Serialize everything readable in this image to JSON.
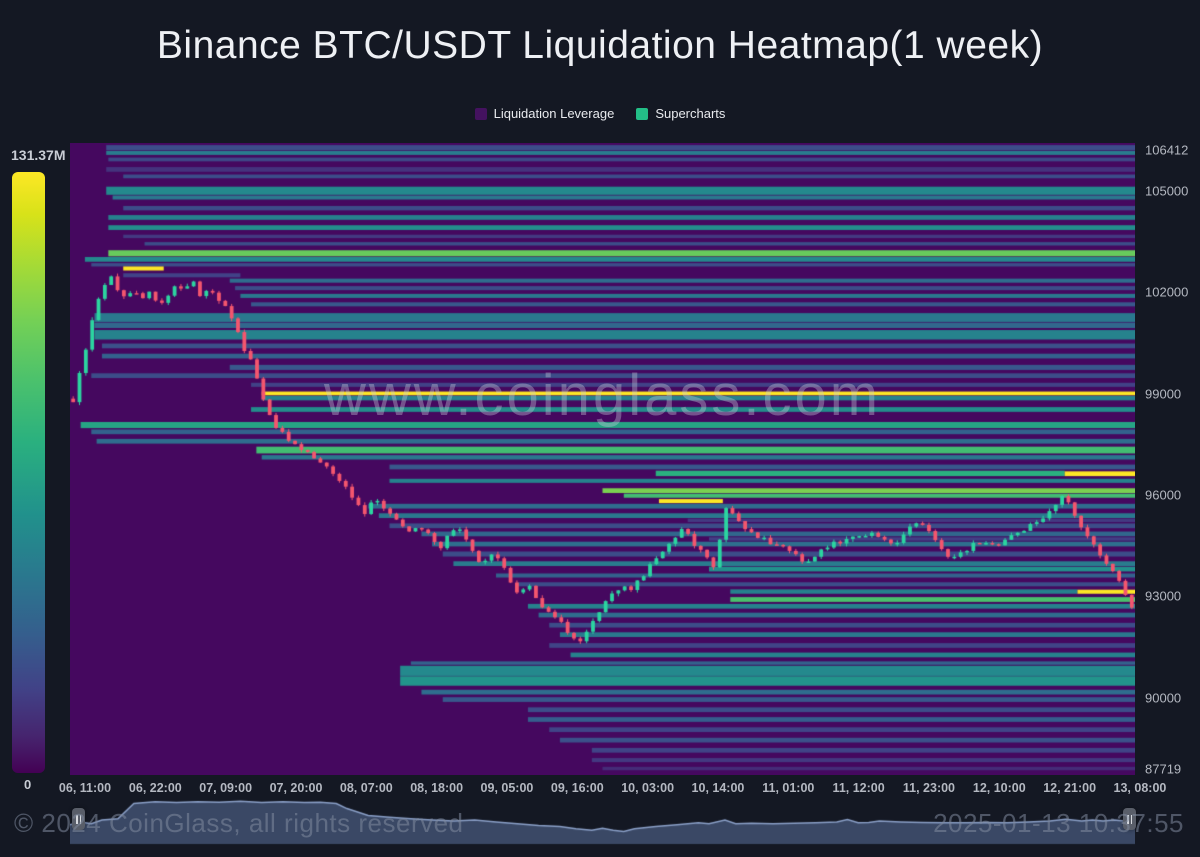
{
  "title": "Binance BTC/USDT Liquidation Heatmap(1 week)",
  "legend": {
    "items": [
      {
        "label": "Liquidation Leverage",
        "color": "#44125f"
      },
      {
        "label": "Supercharts",
        "color": "#23bf87"
      }
    ]
  },
  "watermark": "www.coinglass.com",
  "footer": {
    "copyright": "© 2024 CoinGlass, all rights reserved",
    "timestamp": "2025-01-13 10:37:55"
  },
  "colors": {
    "page_bg": "#141823",
    "heatmap_bg": "#45085f",
    "candle_up": "#2cd5a0",
    "candle_down": "#f4566e",
    "nav_fill": "#3c4a68",
    "nav_line": "#8ba0c8",
    "accent_yellow": "#fde725"
  },
  "chart_data": {
    "type": "heatmap",
    "title": "Binance BTC/USDT Liquidation Heatmap(1 week)",
    "colorbar_max": "131.37M",
    "colorbar_min": "0",
    "price_axis": {
      "min": 87719,
      "max": 106412,
      "ticks": [
        106412,
        105000,
        102000,
        99000,
        96000,
        93000,
        90000,
        87719
      ]
    },
    "time_ticks": [
      "06, 11:00",
      "06, 22:00",
      "07, 09:00",
      "07, 20:00",
      "08, 07:00",
      "08, 18:00",
      "09, 05:00",
      "09, 16:00",
      "10, 03:00",
      "10, 14:00",
      "11, 01:00",
      "11, 12:00",
      "11, 23:00",
      "12, 10:00",
      "12, 21:00",
      "13, 08:00"
    ],
    "bands": [
      {
        "p0": 106350,
        "p1": 106200,
        "x0": 0.034,
        "x1": 1,
        "v": 0.3
      },
      {
        "p0": 106180,
        "p1": 106060,
        "x0": 0.034,
        "x1": 1,
        "v": 0.52
      },
      {
        "p0": 105980,
        "p1": 105870,
        "x0": 0.036,
        "x1": 1,
        "v": 0.28
      },
      {
        "p0": 105700,
        "p1": 105560,
        "x0": 0.034,
        "x1": 1,
        "v": 0.2
      },
      {
        "p0": 105480,
        "p1": 105370,
        "x0": 0.05,
        "x1": 1,
        "v": 0.3
      },
      {
        "p0": 105120,
        "p1": 104880,
        "x0": 0.034,
        "x1": 1,
        "v": 0.58
      },
      {
        "p0": 104860,
        "p1": 104740,
        "x0": 0.04,
        "x1": 1,
        "v": 0.5
      },
      {
        "p0": 104550,
        "p1": 104420,
        "x0": 0.05,
        "x1": 1,
        "v": 0.3
      },
      {
        "p0": 104280,
        "p1": 104140,
        "x0": 0.036,
        "x1": 1,
        "v": 0.55
      },
      {
        "p0": 103980,
        "p1": 103840,
        "x0": 0.036,
        "x1": 1,
        "v": 0.6
      },
      {
        "p0": 103700,
        "p1": 103600,
        "x0": 0.05,
        "x1": 1,
        "v": 0.22
      },
      {
        "p0": 103480,
        "p1": 103380,
        "x0": 0.07,
        "x1": 1,
        "v": 0.3
      },
      {
        "p0": 103240,
        "p1": 103060,
        "x0": 0.036,
        "x1": 1,
        "v": 0.85
      },
      {
        "p0": 103040,
        "p1": 102900,
        "x0": 0.014,
        "x1": 1,
        "v": 0.58
      },
      {
        "p0": 102860,
        "p1": 102760,
        "x0": 0.02,
        "x1": 1,
        "v": 0.3
      },
      {
        "p0": 102760,
        "p1": 102640,
        "x0": 0.05,
        "x1": 0.088,
        "v": 1.0
      },
      {
        "p0": 102560,
        "p1": 102440,
        "x0": 0.05,
        "x1": 0.16,
        "v": 0.25
      },
      {
        "p0": 102400,
        "p1": 102280,
        "x0": 0.15,
        "x1": 1,
        "v": 0.45
      },
      {
        "p0": 102180,
        "p1": 102060,
        "x0": 0.155,
        "x1": 1,
        "v": 0.3
      },
      {
        "p0": 101950,
        "p1": 101830,
        "x0": 0.16,
        "x1": 1,
        "v": 0.5
      },
      {
        "p0": 101700,
        "p1": 101580,
        "x0": 0.17,
        "x1": 1,
        "v": 0.35
      },
      {
        "p0": 101380,
        "p1": 101120,
        "x0": 0.023,
        "x1": 1,
        "v": 0.5
      },
      {
        "p0": 101100,
        "p1": 100940,
        "x0": 0.023,
        "x1": 1,
        "v": 0.42
      },
      {
        "p0": 100880,
        "p1": 100600,
        "x0": 0.023,
        "x1": 1,
        "v": 0.55
      },
      {
        "p0": 100480,
        "p1": 100340,
        "x0": 0.03,
        "x1": 1,
        "v": 0.32
      },
      {
        "p0": 100180,
        "p1": 100040,
        "x0": 0.03,
        "x1": 1,
        "v": 0.4
      },
      {
        "p0": 99850,
        "p1": 99700,
        "x0": 0.15,
        "x1": 1,
        "v": 0.35
      },
      {
        "p0": 99600,
        "p1": 99460,
        "x0": 0.02,
        "x1": 1,
        "v": 0.3
      },
      {
        "p0": 99320,
        "p1": 99200,
        "x0": 0.17,
        "x1": 1,
        "v": 0.25
      },
      {
        "p0": 99060,
        "p1": 98950,
        "x0": 0.18,
        "x1": 1,
        "v": 1.0
      },
      {
        "p0": 98930,
        "p1": 98800,
        "x0": 0.18,
        "x1": 1,
        "v": 0.55
      },
      {
        "p0": 98600,
        "p1": 98460,
        "x0": 0.17,
        "x1": 1,
        "v": 0.6
      },
      {
        "p0": 98160,
        "p1": 97980,
        "x0": 0.01,
        "x1": 1,
        "v": 0.68
      },
      {
        "p0": 97940,
        "p1": 97800,
        "x0": 0.02,
        "x1": 1,
        "v": 0.4
      },
      {
        "p0": 97660,
        "p1": 97520,
        "x0": 0.025,
        "x1": 1,
        "v": 0.45
      },
      {
        "p0": 97430,
        "p1": 97230,
        "x0": 0.175,
        "x1": 1,
        "v": 0.78
      },
      {
        "p0": 97180,
        "p1": 97050,
        "x0": 0.18,
        "x1": 1,
        "v": 0.5
      },
      {
        "p0": 96900,
        "p1": 96760,
        "x0": 0.3,
        "x1": 1,
        "v": 0.35
      },
      {
        "p0": 96720,
        "p1": 96560,
        "x0": 0.55,
        "x1": 0.934,
        "v": 0.72
      },
      {
        "p0": 96700,
        "p1": 96560,
        "x0": 0.934,
        "x1": 1,
        "v": 1.0
      },
      {
        "p0": 96480,
        "p1": 96360,
        "x0": 0.3,
        "x1": 1,
        "v": 0.55
      },
      {
        "p0": 96200,
        "p1": 96060,
        "x0": 0.5,
        "x1": 1,
        "v": 0.88
      },
      {
        "p0": 96040,
        "p1": 95920,
        "x0": 0.52,
        "x1": 1,
        "v": 0.78
      },
      {
        "p0": 95880,
        "p1": 95760,
        "x0": 0.553,
        "x1": 0.613,
        "v": 1.0
      },
      {
        "p0": 95740,
        "p1": 95600,
        "x0": 0.28,
        "x1": 1,
        "v": 0.45
      },
      {
        "p0": 95460,
        "p1": 95320,
        "x0": 0.29,
        "x1": 1,
        "v": 0.5
      },
      {
        "p0": 95300,
        "p1": 95200,
        "x0": 0.58,
        "x1": 1,
        "v": 0.22
      },
      {
        "p0": 95160,
        "p1": 95020,
        "x0": 0.3,
        "x1": 1,
        "v": 0.3
      },
      {
        "p0": 94920,
        "p1": 94780,
        "x0": 0.33,
        "x1": 1,
        "v": 0.42
      },
      {
        "p0": 94750,
        "p1": 94650,
        "x0": 0.6,
        "x1": 1,
        "v": 0.24
      },
      {
        "p0": 94620,
        "p1": 94480,
        "x0": 0.34,
        "x1": 1,
        "v": 0.46
      },
      {
        "p0": 94330,
        "p1": 94180,
        "x0": 0.35,
        "x1": 1,
        "v": 0.3
      },
      {
        "p0": 94040,
        "p1": 93900,
        "x0": 0.36,
        "x1": 1,
        "v": 0.52
      },
      {
        "p0": 93880,
        "p1": 93740,
        "x0": 0.6,
        "x1": 1,
        "v": 0.62
      },
      {
        "p0": 93680,
        "p1": 93560,
        "x0": 0.4,
        "x1": 1,
        "v": 0.4
      },
      {
        "p0": 93420,
        "p1": 93300,
        "x0": 0.42,
        "x1": 1,
        "v": 0.3
      },
      {
        "p0": 93210,
        "p1": 93080,
        "x0": 0.62,
        "x1": 0.946,
        "v": 0.55
      },
      {
        "p0": 93200,
        "p1": 93080,
        "x0": 0.946,
        "x1": 1,
        "v": 1.0
      },
      {
        "p0": 92980,
        "p1": 92840,
        "x0": 0.62,
        "x1": 1,
        "v": 0.8
      },
      {
        "p0": 92780,
        "p1": 92640,
        "x0": 0.43,
        "x1": 1,
        "v": 0.55
      },
      {
        "p0": 92520,
        "p1": 92380,
        "x0": 0.44,
        "x1": 1,
        "v": 0.45
      },
      {
        "p0": 92220,
        "p1": 92080,
        "x0": 0.45,
        "x1": 1,
        "v": 0.3
      },
      {
        "p0": 91940,
        "p1": 91800,
        "x0": 0.46,
        "x1": 1,
        "v": 0.5
      },
      {
        "p0": 91620,
        "p1": 91480,
        "x0": 0.45,
        "x1": 1,
        "v": 0.26
      },
      {
        "p0": 91340,
        "p1": 91200,
        "x0": 0.47,
        "x1": 1,
        "v": 0.55
      },
      {
        "p0": 91080,
        "p1": 90980,
        "x0": 0.32,
        "x1": 1,
        "v": 0.4
      },
      {
        "p0": 90950,
        "p1": 90650,
        "x0": 0.31,
        "x1": 1,
        "v": 0.58
      },
      {
        "p0": 90640,
        "p1": 90360,
        "x0": 0.31,
        "x1": 1,
        "v": 0.63
      },
      {
        "p0": 90240,
        "p1": 90100,
        "x0": 0.33,
        "x1": 1,
        "v": 0.45
      },
      {
        "p0": 90020,
        "p1": 89880,
        "x0": 0.35,
        "x1": 1,
        "v": 0.35
      },
      {
        "p0": 89720,
        "p1": 89580,
        "x0": 0.43,
        "x1": 1,
        "v": 0.3
      },
      {
        "p0": 89430,
        "p1": 89290,
        "x0": 0.43,
        "x1": 1,
        "v": 0.38
      },
      {
        "p0": 89130,
        "p1": 88990,
        "x0": 0.45,
        "x1": 1,
        "v": 0.26
      },
      {
        "p0": 88820,
        "p1": 88680,
        "x0": 0.46,
        "x1": 1,
        "v": 0.32
      },
      {
        "p0": 88520,
        "p1": 88380,
        "x0": 0.49,
        "x1": 1,
        "v": 0.26
      },
      {
        "p0": 88220,
        "p1": 88100,
        "x0": 0.49,
        "x1": 1,
        "v": 0.22
      },
      {
        "p0": 87960,
        "p1": 87860,
        "x0": 0.5,
        "x1": 1,
        "v": 0.18
      }
    ],
    "price_path": [
      [
        0.0,
        98900
      ],
      [
        0.004,
        98400
      ],
      [
        0.008,
        99100
      ],
      [
        0.013,
        99700
      ],
      [
        0.018,
        100300
      ],
      [
        0.024,
        101200
      ],
      [
        0.03,
        101900
      ],
      [
        0.036,
        102300
      ],
      [
        0.042,
        102500
      ],
      [
        0.048,
        102100
      ],
      [
        0.055,
        101800
      ],
      [
        0.062,
        102100
      ],
      [
        0.07,
        101700
      ],
      [
        0.078,
        102000
      ],
      [
        0.086,
        101600
      ],
      [
        0.094,
        101900
      ],
      [
        0.102,
        102200
      ],
      [
        0.11,
        102000
      ],
      [
        0.118,
        102300
      ],
      [
        0.126,
        101900
      ],
      [
        0.134,
        102100
      ],
      [
        0.142,
        101800
      ],
      [
        0.15,
        101500
      ],
      [
        0.158,
        101000
      ],
      [
        0.165,
        100400
      ],
      [
        0.172,
        100100
      ],
      [
        0.18,
        99300
      ],
      [
        0.186,
        98600
      ],
      [
        0.192,
        98200
      ],
      [
        0.2,
        97900
      ],
      [
        0.21,
        97600
      ],
      [
        0.22,
        97400
      ],
      [
        0.232,
        97100
      ],
      [
        0.244,
        96800
      ],
      [
        0.255,
        96500
      ],
      [
        0.266,
        96100
      ],
      [
        0.272,
        95700
      ],
      [
        0.28,
        95500
      ],
      [
        0.29,
        95900
      ],
      [
        0.3,
        95600
      ],
      [
        0.31,
        95200
      ],
      [
        0.32,
        94900
      ],
      [
        0.33,
        95100
      ],
      [
        0.34,
        94800
      ],
      [
        0.35,
        94400
      ],
      [
        0.358,
        94800
      ],
      [
        0.368,
        95000
      ],
      [
        0.378,
        94500
      ],
      [
        0.388,
        93900
      ],
      [
        0.398,
        94300
      ],
      [
        0.408,
        94100
      ],
      [
        0.416,
        93400
      ],
      [
        0.424,
        93100
      ],
      [
        0.432,
        93400
      ],
      [
        0.442,
        92900
      ],
      [
        0.452,
        92500
      ],
      [
        0.462,
        92300
      ],
      [
        0.472,
        91900
      ],
      [
        0.48,
        91600
      ],
      [
        0.49,
        92100
      ],
      [
        0.5,
        92600
      ],
      [
        0.51,
        93000
      ],
      [
        0.52,
        93300
      ],
      [
        0.53,
        93200
      ],
      [
        0.54,
        93600
      ],
      [
        0.55,
        94000
      ],
      [
        0.56,
        94300
      ],
      [
        0.57,
        94700
      ],
      [
        0.578,
        95000
      ],
      [
        0.585,
        94800
      ],
      [
        0.592,
        94400
      ],
      [
        0.6,
        94200
      ],
      [
        0.608,
        93900
      ],
      [
        0.614,
        94800
      ],
      [
        0.618,
        95700
      ],
      [
        0.625,
        95400
      ],
      [
        0.635,
        95000
      ],
      [
        0.645,
        94800
      ],
      [
        0.655,
        94700
      ],
      [
        0.665,
        94500
      ],
      [
        0.675,
        94400
      ],
      [
        0.685,
        94200
      ],
      [
        0.695,
        94000
      ],
      [
        0.705,
        94300
      ],
      [
        0.715,
        94500
      ],
      [
        0.725,
        94600
      ],
      [
        0.735,
        94700
      ],
      [
        0.745,
        94800
      ],
      [
        0.755,
        94900
      ],
      [
        0.765,
        94700
      ],
      [
        0.775,
        94500
      ],
      [
        0.785,
        94800
      ],
      [
        0.792,
        95100
      ],
      [
        0.8,
        95200
      ],
      [
        0.81,
        94900
      ],
      [
        0.82,
        94500
      ],
      [
        0.83,
        94100
      ],
      [
        0.84,
        94300
      ],
      [
        0.85,
        94500
      ],
      [
        0.86,
        94650
      ],
      [
        0.87,
        94500
      ],
      [
        0.88,
        94650
      ],
      [
        0.89,
        94800
      ],
      [
        0.9,
        95000
      ],
      [
        0.91,
        95200
      ],
      [
        0.92,
        95400
      ],
      [
        0.93,
        95800
      ],
      [
        0.936,
        96100
      ],
      [
        0.944,
        95500
      ],
      [
        0.952,
        95100
      ],
      [
        0.96,
        94700
      ],
      [
        0.966,
        94400
      ],
      [
        0.972,
        94200
      ],
      [
        0.978,
        93900
      ],
      [
        0.984,
        93600
      ],
      [
        0.99,
        93300
      ],
      [
        0.995,
        93000
      ],
      [
        1.0,
        92700
      ]
    ],
    "nav_points": [
      [
        0,
        0.42
      ],
      [
        0.01,
        0.48
      ],
      [
        0.02,
        0.44
      ],
      [
        0.03,
        0.52
      ],
      [
        0.045,
        0.55
      ],
      [
        0.06,
        0.88
      ],
      [
        0.08,
        0.92
      ],
      [
        0.1,
        0.9
      ],
      [
        0.12,
        0.92
      ],
      [
        0.14,
        0.91
      ],
      [
        0.16,
        0.93
      ],
      [
        0.18,
        0.9
      ],
      [
        0.2,
        0.92
      ],
      [
        0.22,
        0.9
      ],
      [
        0.235,
        0.91
      ],
      [
        0.25,
        0.88
      ],
      [
        0.26,
        0.77
      ],
      [
        0.28,
        0.62
      ],
      [
        0.3,
        0.58
      ],
      [
        0.32,
        0.55
      ],
      [
        0.34,
        0.52
      ],
      [
        0.36,
        0.5
      ],
      [
        0.38,
        0.52
      ],
      [
        0.4,
        0.48
      ],
      [
        0.42,
        0.44
      ],
      [
        0.44,
        0.4
      ],
      [
        0.46,
        0.38
      ],
      [
        0.475,
        0.33
      ],
      [
        0.49,
        0.3
      ],
      [
        0.5,
        0.34
      ],
      [
        0.51,
        0.3
      ],
      [
        0.52,
        0.27
      ],
      [
        0.53,
        0.33
      ],
      [
        0.55,
        0.38
      ],
      [
        0.57,
        0.42
      ],
      [
        0.59,
        0.46
      ],
      [
        0.6,
        0.44
      ],
      [
        0.615,
        0.52
      ],
      [
        0.625,
        0.44
      ],
      [
        0.64,
        0.45
      ],
      [
        0.66,
        0.44
      ],
      [
        0.68,
        0.45
      ],
      [
        0.7,
        0.46
      ],
      [
        0.72,
        0.48
      ],
      [
        0.73,
        0.53
      ],
      [
        0.74,
        0.46
      ],
      [
        0.75,
        0.47
      ],
      [
        0.76,
        0.5
      ],
      [
        0.78,
        0.48
      ],
      [
        0.8,
        0.47
      ],
      [
        0.82,
        0.46
      ],
      [
        0.84,
        0.46
      ],
      [
        0.86,
        0.47
      ],
      [
        0.88,
        0.46
      ],
      [
        0.9,
        0.48
      ],
      [
        0.92,
        0.5
      ],
      [
        0.935,
        0.54
      ],
      [
        0.95,
        0.5
      ],
      [
        0.96,
        0.52
      ],
      [
        0.97,
        0.5
      ],
      [
        0.98,
        0.52
      ],
      [
        0.99,
        0.5
      ],
      [
        1,
        0.48
      ]
    ]
  }
}
